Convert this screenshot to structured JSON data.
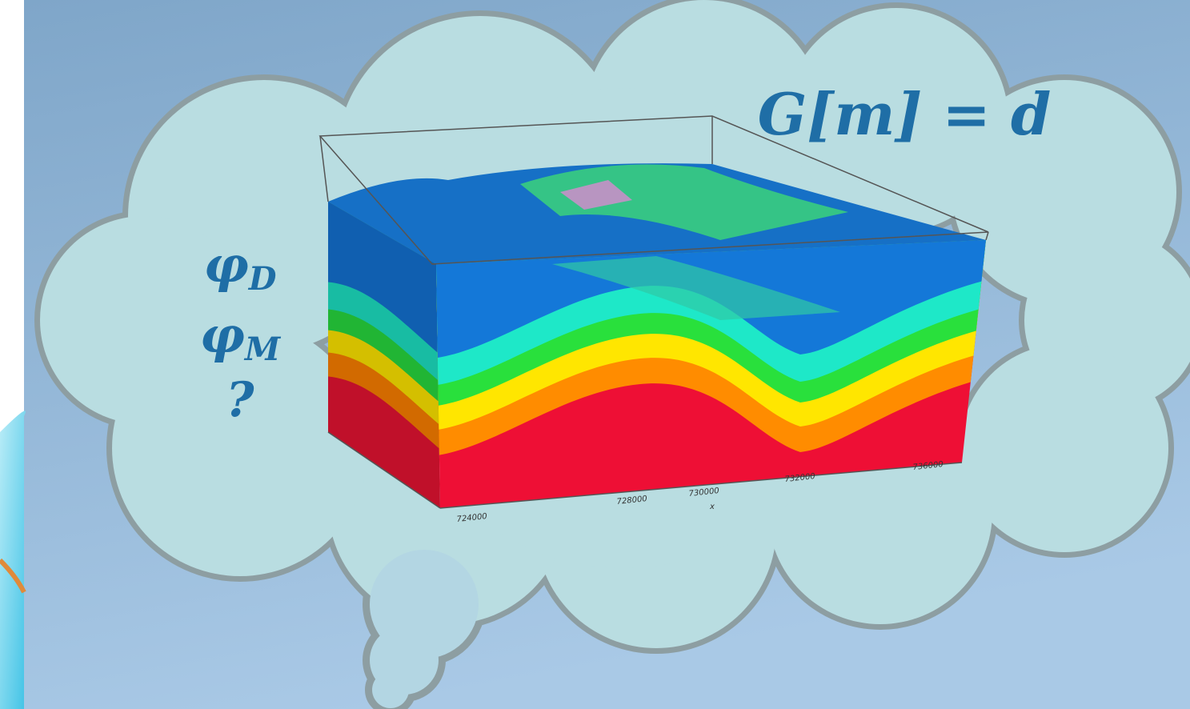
{
  "equation": "G[m] = d",
  "symbols": [
    {
      "base": "φ",
      "subscript": "D"
    },
    {
      "base": "φ",
      "subscript": "M"
    },
    {
      "base": "?"
    }
  ],
  "model_axis_labels": {
    "x_ticks": [
      "724000",
      "728000",
      "730000",
      "732000",
      "736000"
    ],
    "x_title": "x"
  }
}
